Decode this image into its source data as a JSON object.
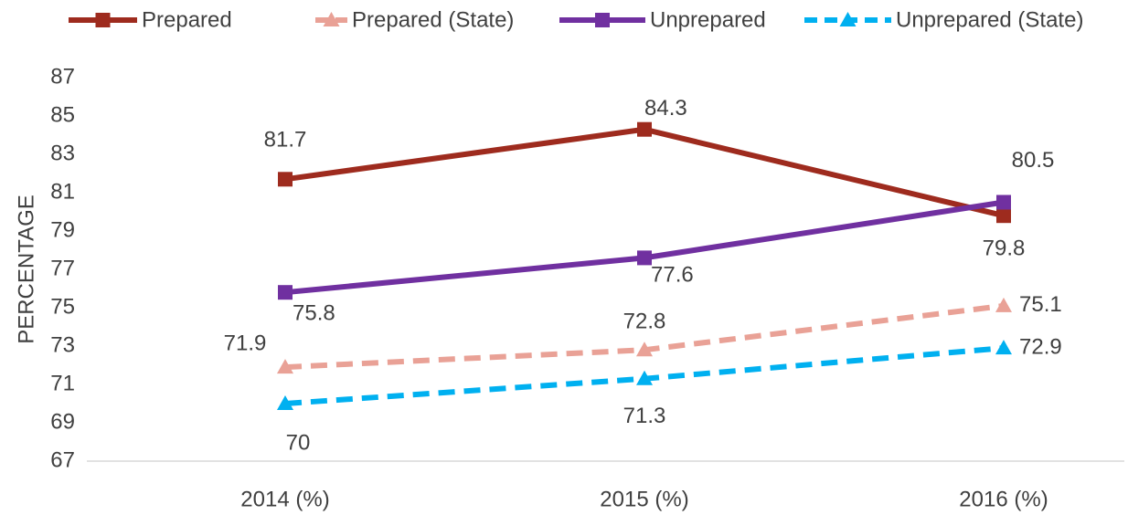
{
  "chart_data": {
    "type": "line",
    "categories": [
      "2014 (%)",
      "2015 (%)",
      "2016 (%)"
    ],
    "y_label": "PERCENTAGE",
    "ylim": [
      67,
      87
    ],
    "yticks": [
      67,
      69,
      71,
      73,
      75,
      77,
      79,
      81,
      83,
      85,
      87
    ],
    "legend": "top",
    "series": [
      {
        "name": "Prepared",
        "color": "#9e2b1e",
        "dashed": false,
        "marker": "square",
        "values": [
          81.7,
          84.3,
          79.8
        ]
      },
      {
        "name": "Prepared (State)",
        "color": "#e9a196",
        "dashed": true,
        "marker": "triangle",
        "values": [
          71.9,
          72.8,
          75.1
        ]
      },
      {
        "name": "Unprepared",
        "color": "#7030a0",
        "dashed": false,
        "marker": "square",
        "values": [
          75.8,
          77.6,
          80.5
        ]
      },
      {
        "name": "Unprepared (State)",
        "color": "#00b0f0",
        "dashed": true,
        "marker": "triangle",
        "values": [
          70,
          71.3,
          72.9
        ]
      }
    ]
  }
}
